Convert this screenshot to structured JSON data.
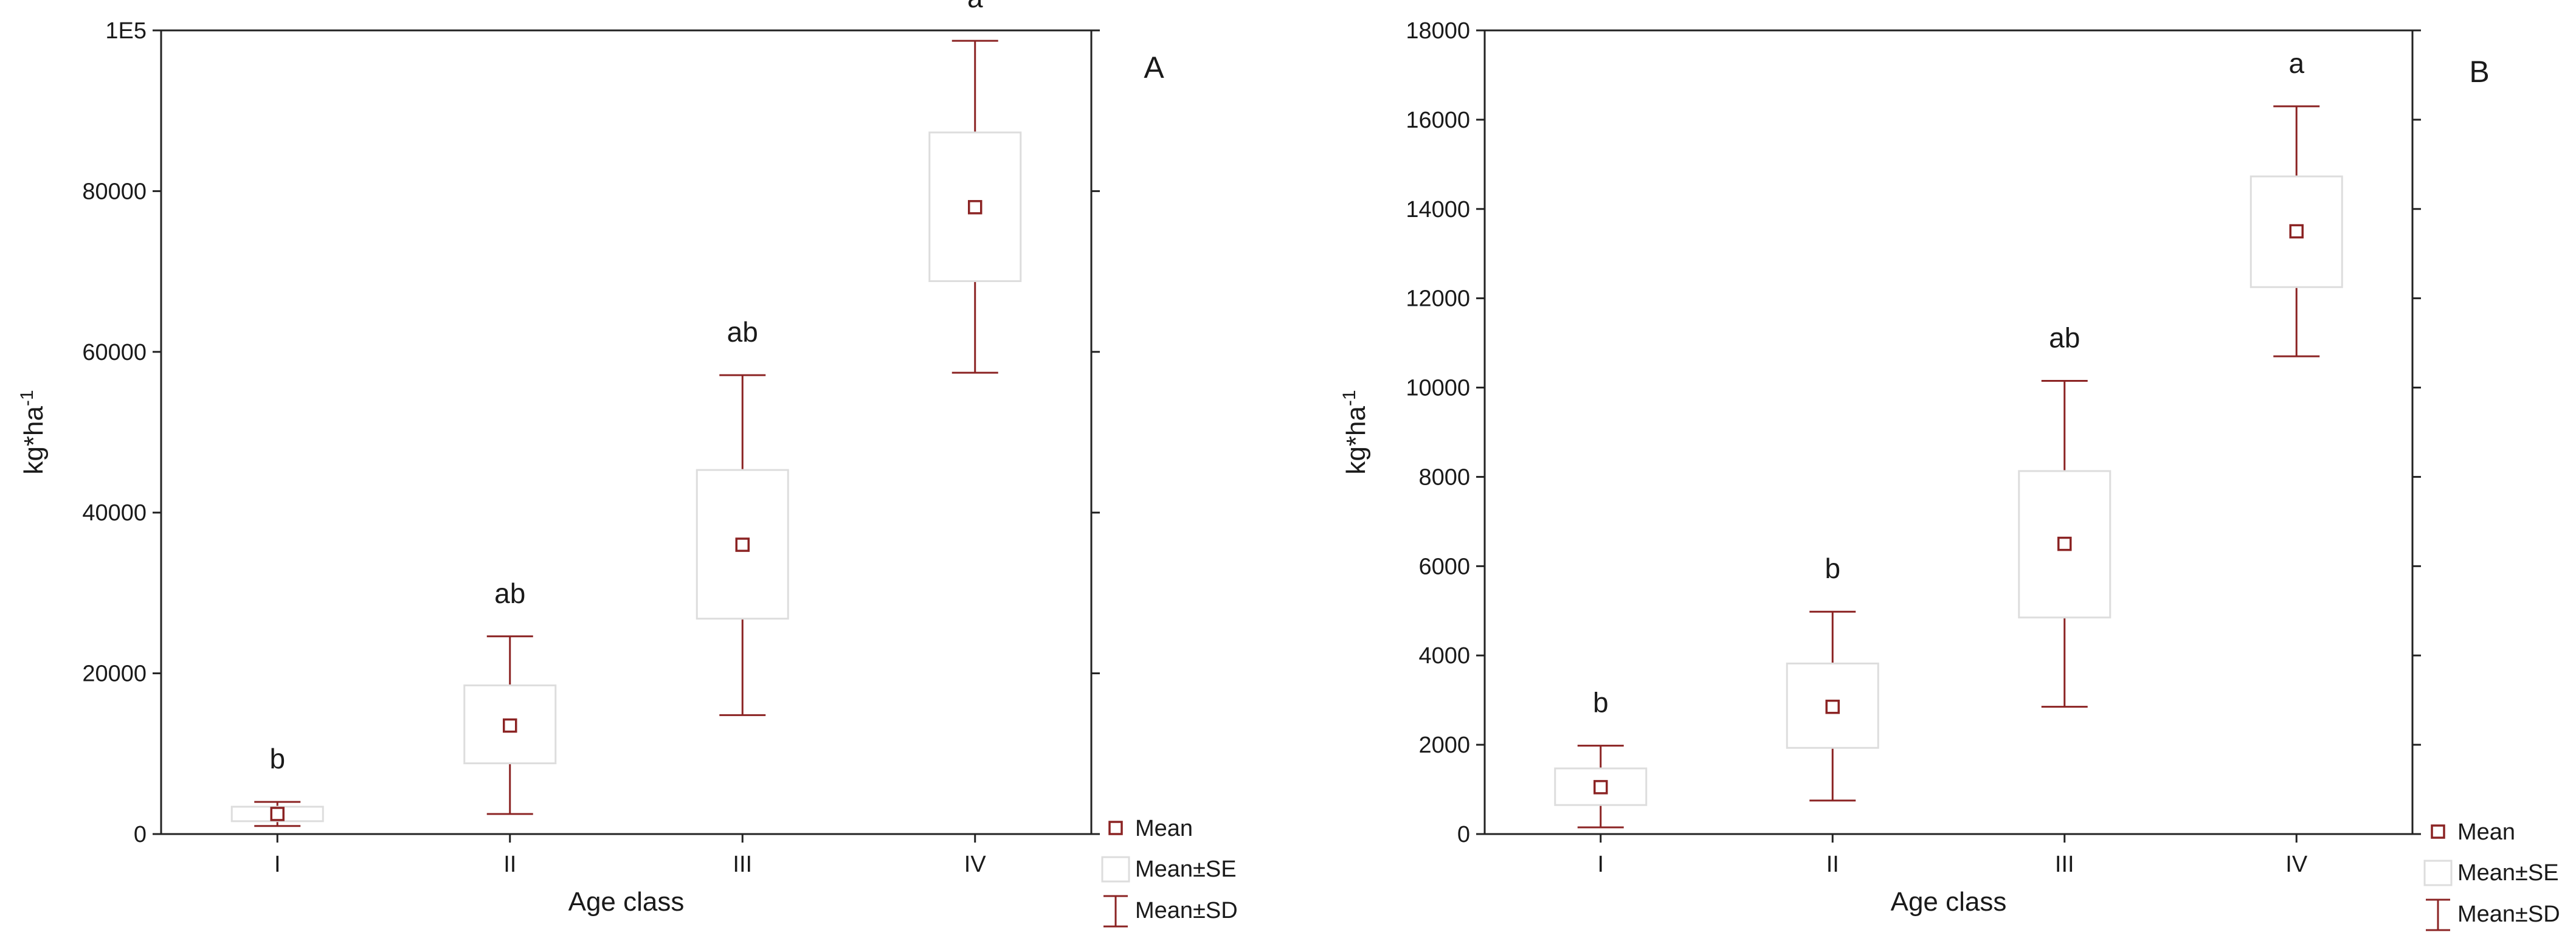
{
  "colors": {
    "mark": "#8b2323",
    "box_stroke": "#dddddd",
    "frame": "#222222",
    "text": "#1a1a1a"
  },
  "legend": {
    "mean": "Mean",
    "se": "Mean±SE",
    "sd": "Mean±SD"
  },
  "chart_data": [
    {
      "type": "boxplot",
      "panel_label": "A",
      "xlabel": "Age class",
      "ylabel_main": "kg*ha",
      "ylabel_sup": "-1",
      "ylim": [
        0,
        100000
      ],
      "y_ticks": [
        0,
        20000,
        40000,
        60000,
        80000,
        100000
      ],
      "y_tick_labels": [
        "0",
        "20000",
        "40000",
        "60000",
        "80000",
        "1E5"
      ],
      "categories": [
        "I",
        "II",
        "III",
        "IV"
      ],
      "mean": [
        2500,
        13500,
        36000,
        78000
      ],
      "se_low": [
        1600,
        8800,
        26800,
        68800
      ],
      "se_high": [
        3400,
        18500,
        45300,
        87300
      ],
      "sd_low": [
        1000,
        2500,
        14800,
        57400
      ],
      "sd_high": [
        4000,
        24600,
        57100,
        98700
      ],
      "group_letters": [
        "b",
        "ab",
        "ab",
        "a"
      ],
      "legend_position": "bottom-right outside"
    },
    {
      "type": "boxplot",
      "panel_label": "B",
      "xlabel": "Age class",
      "ylabel_main": "kg*ha",
      "ylabel_sup": "-1",
      "ylim": [
        0,
        18000
      ],
      "y_ticks": [
        0,
        2000,
        4000,
        6000,
        8000,
        10000,
        12000,
        14000,
        16000,
        18000
      ],
      "y_tick_labels": [
        "0",
        "2000",
        "4000",
        "6000",
        "8000",
        "10000",
        "12000",
        "14000",
        "16000",
        "18000"
      ],
      "categories": [
        "I",
        "II",
        "III",
        "IV"
      ],
      "mean": [
        1050,
        2850,
        6500,
        13500
      ],
      "se_low": [
        650,
        1930,
        4850,
        12250
      ],
      "se_high": [
        1470,
        3820,
        8130,
        14730
      ],
      "sd_low": [
        150,
        750,
        2850,
        10700
      ],
      "sd_high": [
        1980,
        4980,
        10150,
        16300
      ],
      "group_letters": [
        "b",
        "b",
        "ab",
        "a"
      ],
      "legend_position": "bottom-right outside"
    }
  ]
}
